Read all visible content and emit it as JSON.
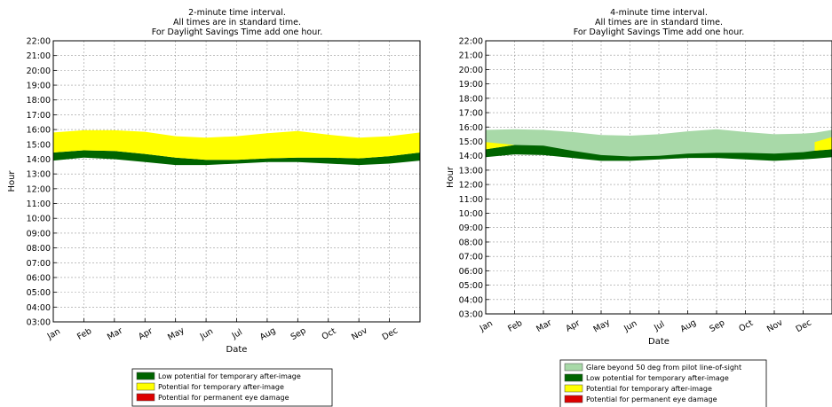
{
  "chart_data": [
    {
      "type": "area",
      "title": [
        "2-minute time interval.",
        "All times are in standard time.",
        "For Daylight Savings Time add one hour."
      ],
      "xlabel": "Date",
      "ylabel": "Hour",
      "x_ticks": [
        "Jan",
        "Feb",
        "Mar",
        "Apr",
        "May",
        "Jun",
        "Jul",
        "Aug",
        "Sep",
        "Oct",
        "Nov",
        "Dec"
      ],
      "y_ticks": [
        "03:00",
        "04:00",
        "05:00",
        "06:00",
        "07:00",
        "08:00",
        "09:00",
        "10:00",
        "11:00",
        "12:00",
        "13:00",
        "14:00",
        "15:00",
        "16:00",
        "17:00",
        "18:00",
        "19:00",
        "20:00",
        "21:00",
        "22:00"
      ],
      "ylim": [
        3,
        22
      ],
      "xlim": [
        0,
        12
      ],
      "grid": true,
      "legend_position": "bottom",
      "x": [
        0,
        1,
        2,
        3,
        4,
        5,
        6,
        7,
        8,
        9,
        10,
        11,
        12
      ],
      "series": [
        {
          "name": "Low potential for temporary after-image",
          "color": "#006400",
          "lower": [
            13.9,
            14.1,
            14.0,
            13.8,
            13.6,
            13.6,
            13.7,
            13.8,
            13.8,
            13.7,
            13.6,
            13.7,
            13.9
          ],
          "upper": [
            14.45,
            14.6,
            14.55,
            14.35,
            14.1,
            13.95,
            13.95,
            14.05,
            14.1,
            14.1,
            14.05,
            14.2,
            14.45
          ]
        },
        {
          "name": "Potential for temporary after-image",
          "color": "#ffff00",
          "lower": [
            14.45,
            14.6,
            14.55,
            14.35,
            14.1,
            13.95,
            13.95,
            14.05,
            14.1,
            14.1,
            14.05,
            14.2,
            14.45
          ],
          "upper": [
            15.8,
            15.95,
            15.95,
            15.85,
            15.55,
            15.45,
            15.55,
            15.75,
            15.9,
            15.65,
            15.45,
            15.55,
            15.8
          ]
        },
        {
          "name": "Potential for permanent eye damage",
          "color": "#dd0000",
          "lower": [],
          "upper": []
        }
      ]
    },
    {
      "type": "area",
      "title": [
        "4-minute time interval.",
        "All times are in standard time.",
        "For Daylight Savings Time add one hour."
      ],
      "xlabel": "Date",
      "ylabel": "Hour",
      "x_ticks": [
        "Jan",
        "Feb",
        "Mar",
        "Apr",
        "May",
        "Jun",
        "Jul",
        "Aug",
        "Sep",
        "Oct",
        "Nov",
        "Dec"
      ],
      "y_ticks": [
        "03:00",
        "04:00",
        "05:00",
        "06:00",
        "07:00",
        "08:00",
        "09:00",
        "10:00",
        "11:00",
        "12:00",
        "13:00",
        "14:00",
        "15:00",
        "16:00",
        "17:00",
        "18:00",
        "19:00",
        "20:00",
        "21:00",
        "22:00"
      ],
      "ylim": [
        3,
        22
      ],
      "xlim": [
        0,
        12
      ],
      "grid": true,
      "legend_position": "bottom",
      "x": [
        0,
        1,
        2,
        3,
        4,
        5,
        6,
        7,
        8,
        9,
        10,
        11,
        11.4,
        12
      ],
      "series": [
        {
          "name": "Glare beyond 50 deg from pilot line-of-sight",
          "color": "#a8d9a8",
          "lower": [
            14.1,
            14.25,
            14.2,
            14.0,
            13.8,
            13.7,
            13.75,
            13.85,
            13.9,
            13.85,
            13.8,
            13.9,
            14.0,
            14.1
          ],
          "upper": [
            15.8,
            15.85,
            15.8,
            15.65,
            15.45,
            15.4,
            15.5,
            15.7,
            15.85,
            15.65,
            15.5,
            15.55,
            15.6,
            15.8
          ]
        },
        {
          "name": "Low potential for temporary after-image",
          "color": "#006400",
          "lower": [
            13.9,
            14.1,
            14.05,
            13.85,
            13.65,
            13.65,
            13.75,
            13.85,
            13.85,
            13.75,
            13.65,
            13.75,
            13.8,
            13.9
          ],
          "upper": [
            14.45,
            14.75,
            14.7,
            14.35,
            14.05,
            13.95,
            14.0,
            14.15,
            14.2,
            14.2,
            14.15,
            14.25,
            14.35,
            14.45
          ]
        },
        {
          "name": "Potential for temporary after-image",
          "color": "#ffff00",
          "lower": [
            14.45,
            14.75,
            null,
            null,
            null,
            null,
            null,
            null,
            null,
            null,
            null,
            null,
            14.35,
            14.45
          ],
          "upper": [
            14.95,
            14.75,
            null,
            null,
            null,
            null,
            null,
            null,
            null,
            null,
            null,
            null,
            14.95,
            15.3
          ]
        },
        {
          "name": "Potential for permanent eye damage",
          "color": "#dd0000",
          "lower": [],
          "upper": []
        }
      ]
    }
  ]
}
